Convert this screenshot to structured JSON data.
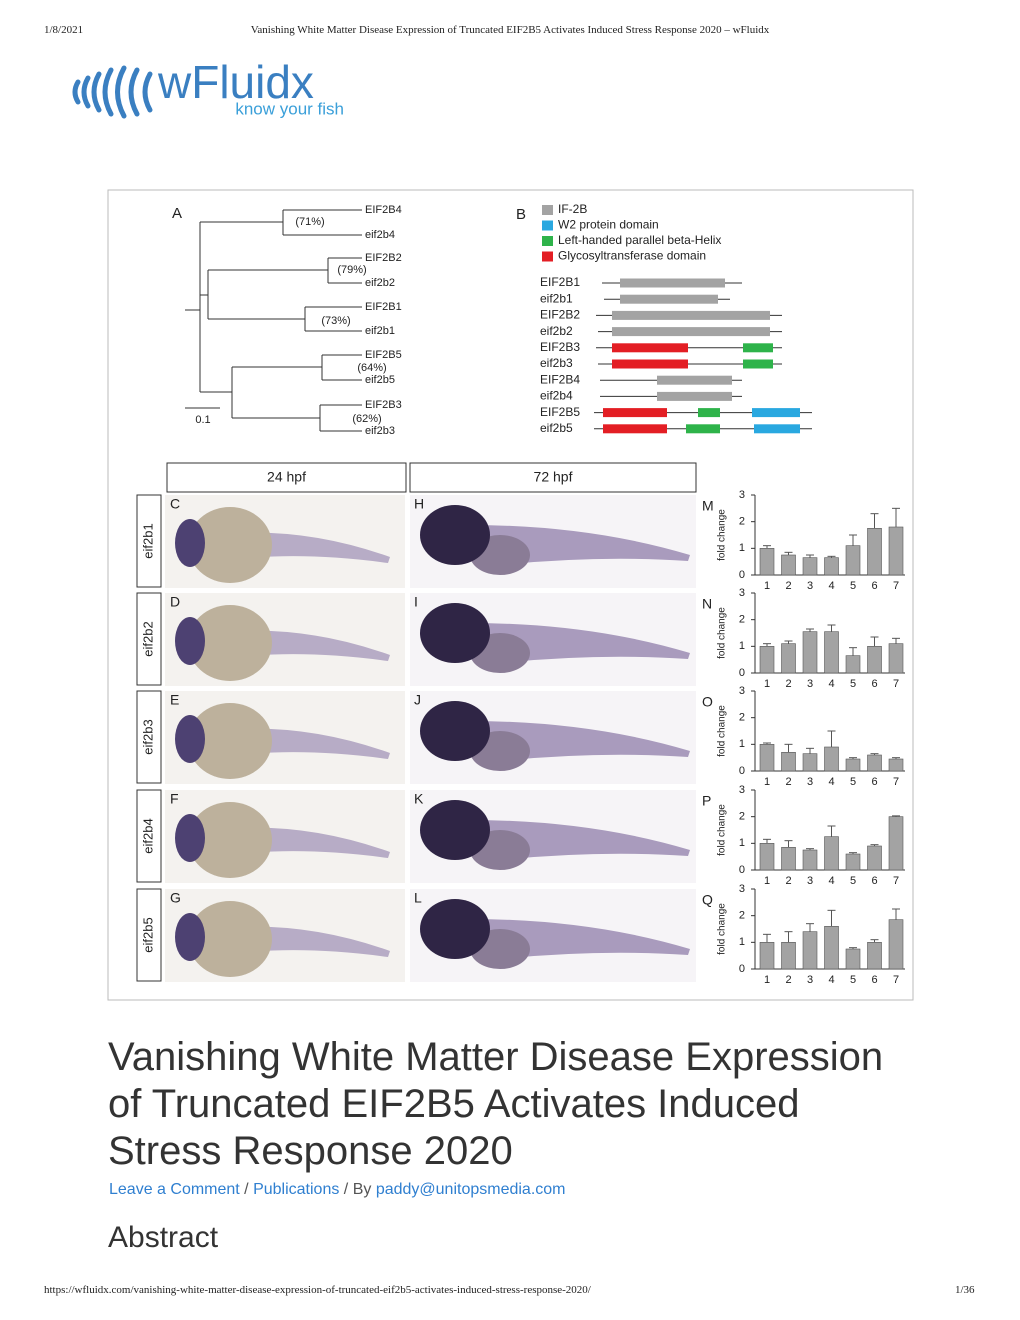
{
  "print_header": {
    "date": "1/8/2021",
    "title": "Vanishing White Matter Disease Expression of Truncated EIF2B5 Activates Induced Stress Response 2020 – wFluidx"
  },
  "logo": {
    "name": "wFluidx",
    "tagline": "know your fish"
  },
  "figure": {
    "panel_a": {
      "label": "A",
      "scale": "0.1",
      "leaves": [
        "EIF2B4",
        "eif2b4",
        "EIF2B2",
        "eif2b2",
        "EIF2B1",
        "eif2b1",
        "EIF2B5",
        "eif2b5",
        "EIF2B3",
        "eif2b3"
      ],
      "identities": [
        "(71%)",
        "(79%)",
        "(73%)",
        "(64%)",
        "(62%)"
      ]
    },
    "panel_b": {
      "label": "B",
      "legend": [
        {
          "name": "IF-2B",
          "color": "#a3a3a3"
        },
        {
          "name": "W2 protein domain",
          "color": "#29a8e0"
        },
        {
          "name": "Left-handed parallel beta-Helix",
          "color": "#2eb34a"
        },
        {
          "name": "Glycosyltransferase domain",
          "color": "#e31e24"
        }
      ],
      "genes": [
        "EIF2B1",
        "eif2b1",
        "EIF2B2",
        "eif2b2",
        "EIF2B3",
        "eif2b3",
        "EIF2B4",
        "eif2b4",
        "EIF2B5",
        "eif2b5"
      ]
    },
    "stages": [
      "24 hpf",
      "72 hpf"
    ],
    "chart_common": {
      "type": "bar",
      "ylabel": "fold change",
      "categories": [
        "1",
        "2",
        "3",
        "4",
        "5",
        "6",
        "7"
      ],
      "ylim": [
        0,
        3
      ],
      "yticks": [
        0,
        1,
        2,
        3
      ],
      "color": "#a3a3a3"
    },
    "rows": [
      {
        "gene": "eif2b1",
        "labels": [
          "C",
          "H",
          "M"
        ],
        "values": [
          1.0,
          0.75,
          0.65,
          0.65,
          1.1,
          1.75,
          1.8
        ],
        "errors": [
          0.1,
          0.1,
          0.1,
          0.05,
          0.4,
          0.55,
          0.7
        ]
      },
      {
        "gene": "eif2b2",
        "labels": [
          "D",
          "I",
          "N"
        ],
        "values": [
          1.0,
          1.1,
          1.55,
          1.55,
          0.65,
          1.0,
          1.1
        ],
        "errors": [
          0.1,
          0.1,
          0.1,
          0.25,
          0.3,
          0.35,
          0.2
        ]
      },
      {
        "gene": "eif2b3",
        "labels": [
          "E",
          "J",
          "O"
        ],
        "values": [
          1.0,
          0.7,
          0.65,
          0.9,
          0.45,
          0.6,
          0.45
        ],
        "errors": [
          0.05,
          0.3,
          0.2,
          0.6,
          0.05,
          0.05,
          0.05
        ]
      },
      {
        "gene": "eif2b4",
        "labels": [
          "F",
          "K",
          "P"
        ],
        "values": [
          1.0,
          0.85,
          0.75,
          1.25,
          0.6,
          0.9,
          2.0
        ],
        "errors": [
          0.15,
          0.25,
          0.05,
          0.4,
          0.05,
          0.05,
          0.03
        ]
      },
      {
        "gene": "eif2b5",
        "labels": [
          "G",
          "L",
          "Q"
        ],
        "values": [
          1.0,
          1.0,
          1.4,
          1.6,
          0.75,
          1.0,
          1.85
        ],
        "errors": [
          0.3,
          0.4,
          0.3,
          0.6,
          0.05,
          0.1,
          0.4
        ]
      }
    ]
  },
  "article": {
    "title": "Vanishing White Matter Disease Expression of Truncated EIF2B5 Activates Induced Stress Response 2020",
    "meta": {
      "comment": "Leave a Comment",
      "sep1": " / ",
      "category": "Publications",
      "sep2": " / By ",
      "author": "paddy@unitopsmedia.com"
    },
    "section": "Abstract"
  },
  "print_footer": {
    "url": "https://wfluidx.com/vanishing-white-matter-disease-expression-of-truncated-eif2b5-activates-induced-stress-response-2020/",
    "page": "1/36"
  }
}
